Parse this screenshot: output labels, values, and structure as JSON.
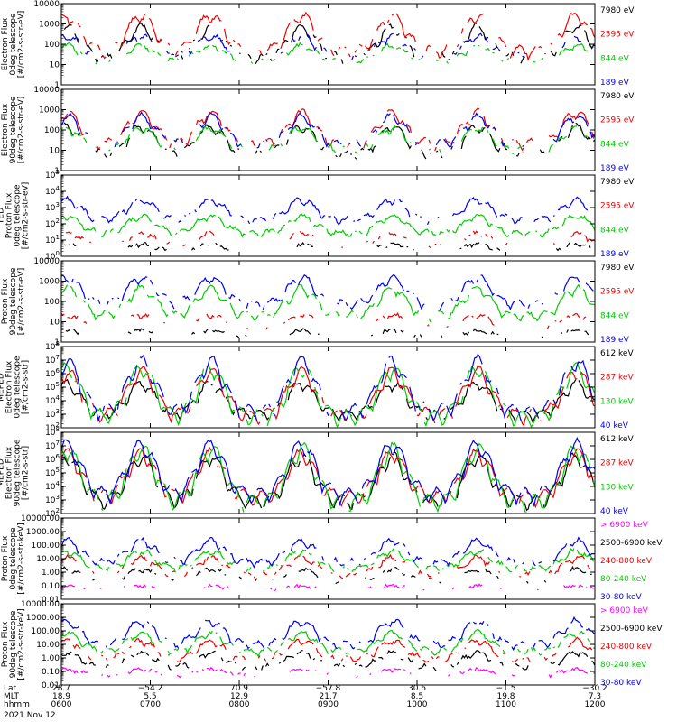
{
  "chart_data": {
    "type": "line",
    "date": "2021 Nov 12",
    "x_axis": {
      "row_labels": [
        "Lat",
        "MLT",
        "hhmm"
      ],
      "ticks": [
        {
          "time": "0600",
          "lat": "28.7",
          "mlt": "18.9"
        },
        {
          "time": "0700",
          "lat": "−54.2",
          "mlt": "5.5"
        },
        {
          "time": "0800",
          "lat": "70.9",
          "mlt": "12.9"
        },
        {
          "time": "0900",
          "lat": "−57.8",
          "mlt": "21.7"
        },
        {
          "time": "1000",
          "lat": "30.6",
          "mlt": "8.5"
        },
        {
          "time": "1100",
          "lat": "−1.5",
          "mlt": "19.8"
        },
        {
          "time": "1200",
          "lat": "−30.2",
          "mlt": "7.3"
        }
      ],
      "range": [
        "0600",
        "1200"
      ]
    },
    "passes": [
      0.01,
      0.15,
      0.28,
      0.45,
      0.62,
      0.78,
      0.965
    ],
    "panels": [
      {
        "ylabel": [
          "Electron Flux",
          "0deg telescope",
          "[#/cm2-s-str-eV]"
        ],
        "scale": "log",
        "ylim": [
          1,
          10000
        ],
        "tick_format": "int",
        "series": [
          {
            "name": "7980 eV",
            "color": "#000000",
            "level": [
              1.0,
              3.0
            ],
            "gap": 0.55
          },
          {
            "name": "2595 eV",
            "color": "#ee0000",
            "level": [
              1.3,
              3.6
            ],
            "gap": 0.35
          },
          {
            "name": "844 eV",
            "color": "#00cc00",
            "level": [
              1.0,
              2.0
            ],
            "gap": 0.6
          },
          {
            "name": "189 eV",
            "color": "#0000ee",
            "level": [
              1.2,
              2.5
            ],
            "gap": 0.7
          }
        ]
      },
      {
        "ylabel": [
          "Electron Flux",
          "90deg telescope",
          "[#/cm2-s-str-eV]"
        ],
        "scale": "log",
        "ylim": [
          1,
          10000
        ],
        "tick_format": "int",
        "series": [
          {
            "name": "7980 eV",
            "color": "#000000",
            "level": [
              0.5,
              2.3
            ],
            "gap": 0.5
          },
          {
            "name": "2595 eV",
            "color": "#ee0000",
            "level": [
              1.0,
              3.0
            ],
            "gap": 0.35
          },
          {
            "name": "844 eV",
            "color": "#00cc00",
            "level": [
              0.8,
              2.2
            ],
            "gap": 0.55
          },
          {
            "name": "189 eV",
            "color": "#0000ee",
            "level": [
              1.0,
              2.8
            ],
            "gap": 0.45
          }
        ]
      },
      {
        "ylabel": [
          "TED",
          "Proton Flux",
          "0deg telescope",
          "[#/cm2-s-str-eV]"
        ],
        "scale": "log",
        "ylim": [
          1,
          100000
        ],
        "tick_format": "exp",
        "series": [
          {
            "name": "7980 eV",
            "color": "#000000",
            "level": [
              0.2,
              0.8
            ],
            "gap": 0.9
          },
          {
            "name": "2595 eV",
            "color": "#ee0000",
            "level": [
              0.5,
              1.5
            ],
            "gap": 0.85
          },
          {
            "name": "844 eV",
            "color": "#00cc00",
            "level": [
              1.2,
              2.6
            ],
            "gap": 0.15
          },
          {
            "name": "189 eV",
            "color": "#0000ee",
            "level": [
              2.0,
              3.6
            ],
            "gap": 0.3
          }
        ]
      },
      {
        "ylabel": [
          "Proton Flux",
          "90deg telescope",
          "[#/cm2-s-str-eV]"
        ],
        "scale": "log",
        "ylim": [
          1,
          10000
        ],
        "tick_format": "int",
        "series": [
          {
            "name": "7980 eV",
            "color": "#000000",
            "level": [
              0.2,
              0.6
            ],
            "gap": 0.92
          },
          {
            "name": "2595 eV",
            "color": "#ee0000",
            "level": [
              0.6,
              1.4
            ],
            "gap": 0.88
          },
          {
            "name": "844 eV",
            "color": "#00cc00",
            "level": [
              1.0,
              2.8
            ],
            "gap": 0.15
          },
          {
            "name": "189 eV",
            "color": "#0000ee",
            "level": [
              1.6,
              3.3
            ],
            "gap": 0.35
          }
        ]
      },
      {
        "ylabel": [
          "MEPED",
          "Electron Flux",
          "0deg telescope",
          "[#/cm2-s-str]"
        ],
        "scale": "log",
        "ylim": [
          100,
          100000000
        ],
        "tick_format": "exp",
        "series": [
          {
            "name": "612 keV",
            "color": "#000000",
            "level": [
              2.5,
              5.5
            ],
            "gap": 0.2
          },
          {
            "name": "287 keV",
            "color": "#ee0000",
            "level": [
              2.2,
              6.5
            ],
            "gap": 0.2
          },
          {
            "name": "130 keV",
            "color": "#00cc00",
            "level": [
              2.0,
              6.8
            ],
            "gap": 0.15
          },
          {
            "name": "40 keV",
            "color": "#0000ee",
            "level": [
              2.4,
              7.3
            ],
            "gap": 0.25
          }
        ]
      },
      {
        "ylabel": [
          "MEPED",
          "Electron Flux",
          "90deg telescope",
          "[#/cm2-s-str]"
        ],
        "scale": "log",
        "ylim": [
          100,
          100000000
        ],
        "tick_format": "exp",
        "series": [
          {
            "name": "612 keV",
            "color": "#000000",
            "level": [
              2.2,
              6.5
            ],
            "gap": 0.15
          },
          {
            "name": "287 keV",
            "color": "#ee0000",
            "level": [
              2.5,
              6.8
            ],
            "gap": 0.15
          },
          {
            "name": "130 keV",
            "color": "#00cc00",
            "level": [
              2.0,
              7.2
            ],
            "gap": 0.1
          },
          {
            "name": "40 keV",
            "color": "#0000ee",
            "level": [
              2.6,
              7.5
            ],
            "gap": 0.1
          }
        ]
      },
      {
        "ylabel": [
          "Proton Flux",
          "0deg telescope",
          "[#/cm2-s-str-keV]"
        ],
        "scale": "log",
        "ylim": [
          0.01,
          10000
        ],
        "tick_format": "dec",
        "series": [
          {
            "name": "> 6900 keV",
            "color": "#ff00ff",
            "level": [
              -1.3,
              -1.0
            ],
            "gap": 0.8
          },
          {
            "name": "2500-6900 keV",
            "color": "#000000",
            "level": [
              -0.8,
              0.3
            ],
            "gap": 0.7
          },
          {
            "name": "240-800 keV",
            "color": "#ee0000",
            "level": [
              -0.5,
              1.2
            ],
            "gap": 0.6
          },
          {
            "name": "80-240 keV",
            "color": "#00cc00",
            "level": [
              0.0,
              1.7
            ],
            "gap": 0.2
          },
          {
            "name": "30-80 keV",
            "color": "#0000ee",
            "level": [
              0.4,
              2.5
            ],
            "gap": 0.3
          }
        ]
      },
      {
        "ylabel": [
          "Proton Flux",
          "90deg telescope",
          "[#/cm2-s-str-keV]"
        ],
        "scale": "log",
        "ylim": [
          0.01,
          10000
        ],
        "tick_format": "dec",
        "series": [
          {
            "name": "> 6900 keV",
            "color": "#ff00ff",
            "level": [
              -1.4,
              -0.8
            ],
            "gap": 0.6
          },
          {
            "name": "2500-6900 keV",
            "color": "#000000",
            "level": [
              -0.9,
              0.5
            ],
            "gap": 0.5
          },
          {
            "name": "240-800 keV",
            "color": "#ee0000",
            "level": [
              -0.4,
              1.4
            ],
            "gap": 0.4
          },
          {
            "name": "80-240 keV",
            "color": "#00cc00",
            "level": [
              0.2,
              2.0
            ],
            "gap": 0.2
          },
          {
            "name": "30-80 keV",
            "color": "#0000ee",
            "level": [
              0.6,
              2.9
            ],
            "gap": 0.25
          }
        ]
      }
    ]
  }
}
